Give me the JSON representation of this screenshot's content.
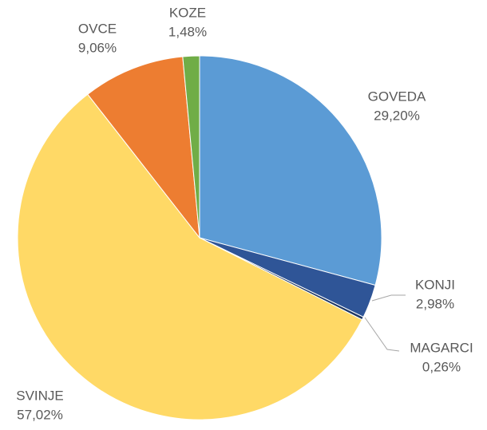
{
  "chart_data": {
    "type": "pie",
    "categories": [
      "GOVEDA",
      "KONJI",
      "MAGARCI",
      "SVINJE",
      "OVCE",
      "KOZE"
    ],
    "values": [
      29.2,
      2.98,
      0.26,
      57.02,
      9.06,
      1.48
    ],
    "value_labels": [
      "29,20%",
      "2,98%",
      "0,26%",
      "57,02%",
      "9,06%",
      "1,48%"
    ],
    "colors": [
      "#5b9bd5",
      "#2f5597",
      "#1f3864",
      "#ffd966",
      "#ed7d31",
      "#70ad47"
    ]
  }
}
